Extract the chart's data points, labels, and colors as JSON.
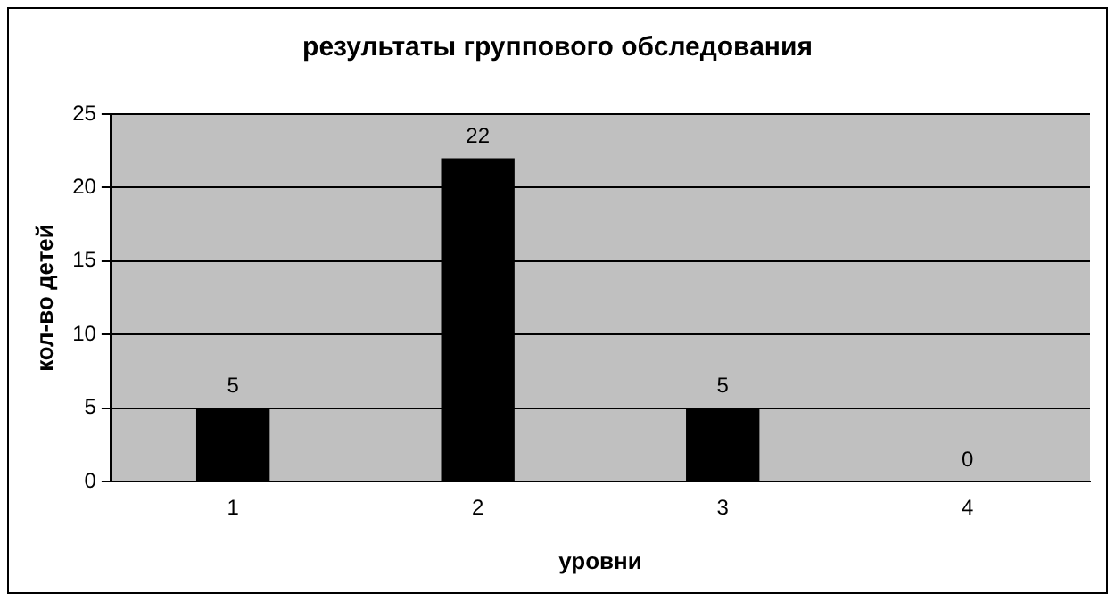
{
  "chart_data": {
    "type": "bar",
    "title": "результаты группового обследования",
    "xlabel": "уровни",
    "ylabel": "кол-во детей",
    "categories": [
      "1",
      "2",
      "3",
      "4"
    ],
    "values": [
      5,
      22,
      5,
      0
    ],
    "color": "#000000",
    "ylim": [
      0,
      25
    ],
    "yticks": [
      0,
      5,
      10,
      15,
      20,
      25
    ],
    "grid": "y",
    "data_labels": true,
    "legend": false
  }
}
